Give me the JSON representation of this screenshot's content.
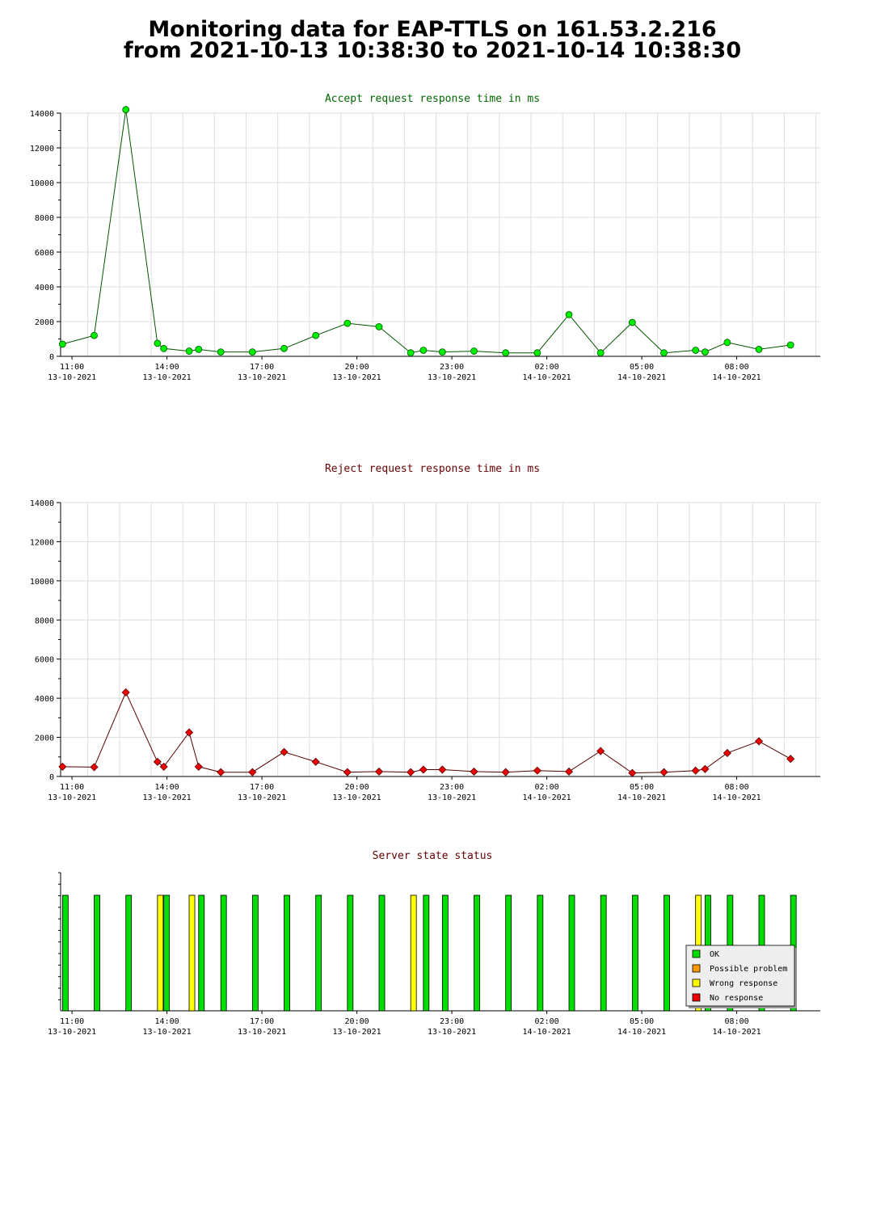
{
  "title_line1": "Monitoring data for EAP-TTLS on 161.53.2.216",
  "title_line2": "from 2021-10-13 10:38:30 to 2021-10-14 10:38:30",
  "colors": {
    "accept_line": "#005500",
    "accept_point": "#00ee00",
    "reject_line": "#550000",
    "reject_point": "#ee0000",
    "accept_title": "#006600",
    "reject_title": "#660000",
    "grid": "#dddddd",
    "ok": "#00dd00",
    "possible_problem": "#ff9900",
    "wrong_response": "#ffff00",
    "no_response": "#ee0000"
  },
  "chart_data": [
    {
      "type": "line",
      "title": "Accept request response time in ms",
      "ylim": [
        0,
        14000
      ],
      "yticks": [
        0,
        2000,
        4000,
        6000,
        8000,
        10000,
        12000,
        14000
      ],
      "xlim": [
        10.64,
        34.64
      ],
      "x_ticks": [
        {
          "x": 11,
          "time": "11:00",
          "date": "13-10-2021"
        },
        {
          "x": 14,
          "time": "14:00",
          "date": "13-10-2021"
        },
        {
          "x": 17,
          "time": "17:00",
          "date": "13-10-2021"
        },
        {
          "x": 20,
          "time": "20:00",
          "date": "13-10-2021"
        },
        {
          "x": 23,
          "time": "23:00",
          "date": "13-10-2021"
        },
        {
          "x": 26,
          "time": "02:00",
          "date": "14-10-2021"
        },
        {
          "x": 29,
          "time": "05:00",
          "date": "14-10-2021"
        },
        {
          "x": 32,
          "time": "08:00",
          "date": "14-10-2021"
        }
      ],
      "grid": true,
      "x": [
        10.7,
        11.7,
        12.7,
        13.7,
        13.9,
        14.7,
        15.0,
        15.7,
        16.7,
        17.7,
        18.7,
        19.7,
        20.7,
        21.7,
        22.1,
        22.7,
        23.7,
        24.7,
        25.7,
        26.7,
        27.7,
        28.7,
        29.7,
        30.7,
        31.0,
        31.7,
        32.7,
        33.7
      ],
      "values": [
        700,
        1200,
        14200,
        750,
        450,
        300,
        400,
        250,
        250,
        450,
        1200,
        1900,
        1700,
        200,
        350,
        250,
        300,
        200,
        200,
        2400,
        200,
        1950,
        200,
        350,
        250,
        800,
        400,
        650
      ]
    },
    {
      "type": "line",
      "title": "Reject request response time in ms",
      "ylim": [
        0,
        14000
      ],
      "yticks": [
        0,
        2000,
        4000,
        6000,
        8000,
        10000,
        12000,
        14000
      ],
      "xlim": [
        10.64,
        34.64
      ],
      "x_ticks": [
        {
          "x": 11,
          "time": "11:00",
          "date": "13-10-2021"
        },
        {
          "x": 14,
          "time": "14:00",
          "date": "13-10-2021"
        },
        {
          "x": 17,
          "time": "17:00",
          "date": "13-10-2021"
        },
        {
          "x": 20,
          "time": "20:00",
          "date": "13-10-2021"
        },
        {
          "x": 23,
          "time": "23:00",
          "date": "13-10-2021"
        },
        {
          "x": 26,
          "time": "02:00",
          "date": "14-10-2021"
        },
        {
          "x": 29,
          "time": "05:00",
          "date": "14-10-2021"
        },
        {
          "x": 32,
          "time": "08:00",
          "date": "14-10-2021"
        }
      ],
      "grid": true,
      "x": [
        10.7,
        11.7,
        12.7,
        13.7,
        13.9,
        14.7,
        15.0,
        15.7,
        16.7,
        17.7,
        18.7,
        19.7,
        20.7,
        21.7,
        22.1,
        22.7,
        23.7,
        24.7,
        25.7,
        26.7,
        27.7,
        28.7,
        29.7,
        30.7,
        31.0,
        31.7,
        32.7,
        33.7
      ],
      "values": [
        500,
        480,
        4300,
        750,
        500,
        2250,
        500,
        220,
        220,
        1250,
        750,
        220,
        250,
        220,
        350,
        350,
        250,
        220,
        300,
        250,
        1300,
        180,
        220,
        300,
        380,
        1200,
        1800,
        900
      ]
    },
    {
      "type": "bar",
      "title": "Server state status",
      "xlim": [
        10.64,
        34.64
      ],
      "x_ticks": [
        {
          "x": 11,
          "time": "11:00",
          "date": "13-10-2021"
        },
        {
          "x": 14,
          "time": "14:00",
          "date": "13-10-2021"
        },
        {
          "x": 17,
          "time": "17:00",
          "date": "13-10-2021"
        },
        {
          "x": 20,
          "time": "20:00",
          "date": "13-10-2021"
        },
        {
          "x": 23,
          "time": "23:00",
          "date": "13-10-2021"
        },
        {
          "x": 26,
          "time": "02:00",
          "date": "14-10-2021"
        },
        {
          "x": 29,
          "time": "05:00",
          "date": "14-10-2021"
        },
        {
          "x": 32,
          "time": "08:00",
          "date": "14-10-2021"
        }
      ],
      "legend": [
        "OK",
        "Possible problem",
        "Wrong response",
        "No response"
      ],
      "legend_placement": "bottom-right",
      "states": [
        {
          "x": 10.7,
          "state": "OK"
        },
        {
          "x": 11.7,
          "state": "OK"
        },
        {
          "x": 12.7,
          "state": "OK"
        },
        {
          "x": 13.7,
          "state": "Wrong response"
        },
        {
          "x": 13.9,
          "state": "OK"
        },
        {
          "x": 14.7,
          "state": "Wrong response"
        },
        {
          "x": 15.0,
          "state": "OK"
        },
        {
          "x": 15.7,
          "state": "OK"
        },
        {
          "x": 16.7,
          "state": "OK"
        },
        {
          "x": 17.7,
          "state": "OK"
        },
        {
          "x": 18.7,
          "state": "OK"
        },
        {
          "x": 19.7,
          "state": "OK"
        },
        {
          "x": 20.7,
          "state": "OK"
        },
        {
          "x": 21.7,
          "state": "Wrong response"
        },
        {
          "x": 22.1,
          "state": "OK"
        },
        {
          "x": 22.7,
          "state": "OK"
        },
        {
          "x": 23.7,
          "state": "OK"
        },
        {
          "x": 24.7,
          "state": "OK"
        },
        {
          "x": 25.7,
          "state": "OK"
        },
        {
          "x": 26.7,
          "state": "OK"
        },
        {
          "x": 27.7,
          "state": "OK"
        },
        {
          "x": 28.7,
          "state": "OK"
        },
        {
          "x": 29.7,
          "state": "OK"
        },
        {
          "x": 30.7,
          "state": "Wrong response"
        },
        {
          "x": 31.0,
          "state": "OK"
        },
        {
          "x": 31.7,
          "state": "OK"
        },
        {
          "x": 32.7,
          "state": "OK"
        },
        {
          "x": 33.7,
          "state": "OK"
        }
      ]
    }
  ]
}
